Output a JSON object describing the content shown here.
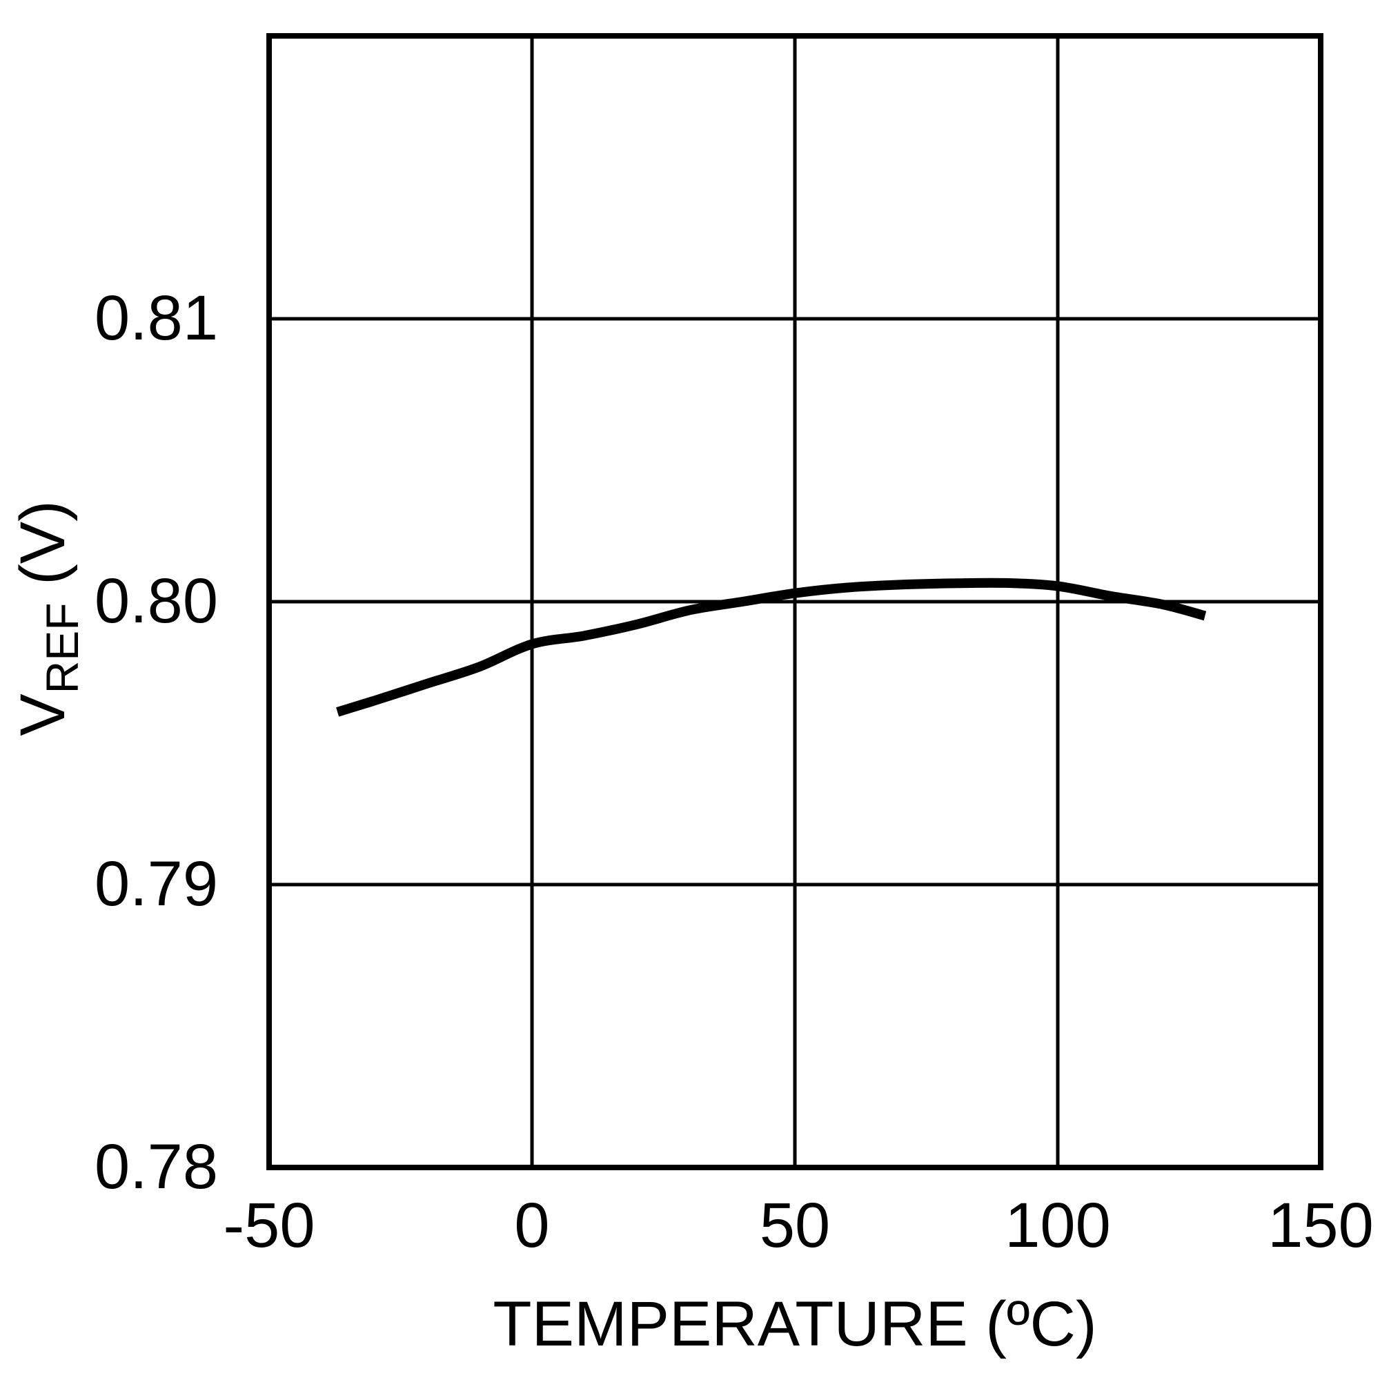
{
  "chart_data": {
    "type": "line",
    "title": "",
    "xlabel": "TEMPERATURE (ºC)",
    "ylabel": "VREF (V)",
    "ylabel_main": "V",
    "ylabel_sub": "REF",
    "ylabel_unit": " (V)",
    "xlim": [
      -50,
      150
    ],
    "ylim": [
      0.78,
      0.82
    ],
    "xticks": [
      -50,
      0,
      50,
      100,
      150
    ],
    "xtick_labels": [
      "-50",
      "0",
      "50",
      "100",
      "150"
    ],
    "yticks": [
      0.78,
      0.79,
      0.8,
      0.81
    ],
    "ytick_labels": [
      "0.78",
      "0.79",
      "0.80",
      "0.81"
    ],
    "grid": true,
    "legend": null,
    "series": [
      {
        "name": "VREF",
        "color": "#000000",
        "x": [
          -37,
          -30,
          -20,
          -10,
          0,
          10,
          20,
          30,
          40,
          50,
          60,
          70,
          80,
          90,
          100,
          110,
          120,
          128
        ],
        "y": [
          0.7961,
          0.7965,
          0.7971,
          0.7977,
          0.7985,
          0.7988,
          0.7992,
          0.7997,
          0.8,
          0.8003,
          0.8005,
          0.8006,
          0.80065,
          0.80066,
          0.80055,
          0.8002,
          0.7999,
          0.7995
        ]
      }
    ]
  },
  "colors": {
    "background": "#ffffff",
    "ink": "#000000"
  }
}
